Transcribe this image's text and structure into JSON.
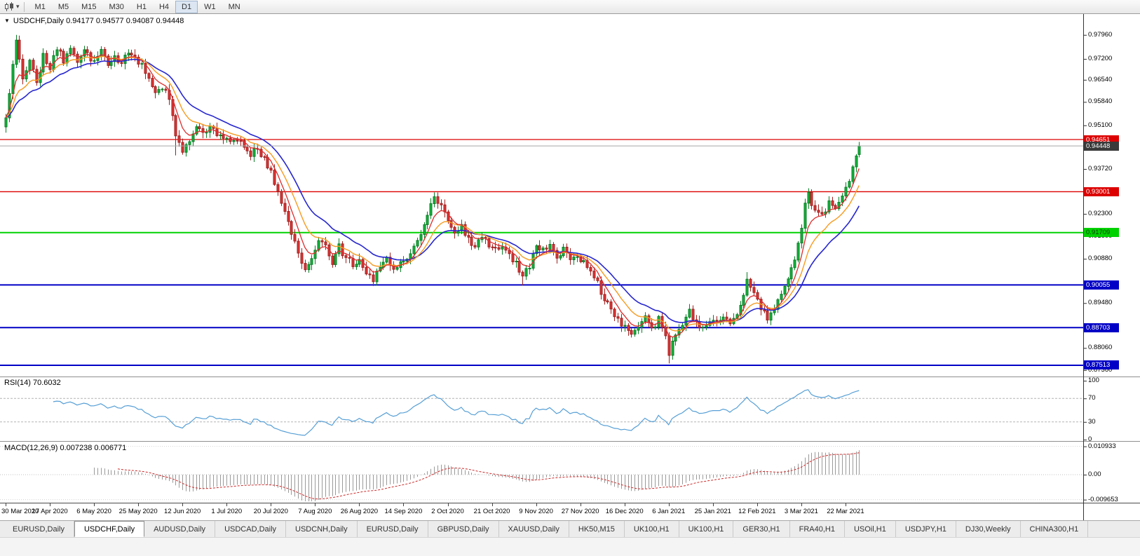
{
  "toolbar": {
    "chart_type_icon": "candlestick-chart-icon",
    "dropdown_caret": "▾",
    "timeframes": [
      "M1",
      "M5",
      "M15",
      "M30",
      "H1",
      "H4",
      "D1",
      "W1",
      "MN"
    ],
    "active_timeframe": "D1"
  },
  "chart": {
    "collapse_arrow": "▼",
    "header_text": "USDCHF,Daily  0.94177 0.94577 0.94087 0.94448",
    "y_axis_labels": [
      "0.97960",
      "0.97200",
      "0.96540",
      "0.95840",
      "0.95100",
      "0.93720",
      "0.92300",
      "0.91600",
      "0.90880",
      "0.89480",
      "0.88060",
      "0.87360"
    ],
    "x_axis_labels": [
      "30 Mar 2020",
      "17 Apr 2020",
      "6 May 2020",
      "25 May 2020",
      "12 Jun 2020",
      "1 Jul 2020",
      "20 Jul 2020",
      "7 Aug 2020",
      "26 Aug 2020",
      "14 Sep 2020",
      "2 Oct 2020",
      "21 Oct 2020",
      "9 Nov 2020",
      "27 Nov 2020",
      "16 Dec 2020",
      "6 Jan 2021",
      "25 Jan 2021",
      "12 Feb 2021",
      "3 Mar 2021",
      "22 Mar 2021"
    ],
    "hlines": [
      {
        "price": "0.94651",
        "color": "#dd0000",
        "width": 1.3,
        "badge_text": "#ffffff"
      },
      {
        "price": "0.93001",
        "color": "#dd0000",
        "width": 1.3,
        "badge_text": "#ffffff"
      },
      {
        "price": "0.91709",
        "color": "#00d200",
        "width": 2,
        "badge_text": "#0a3a0a"
      },
      {
        "price": "0.90055",
        "color": "#0000c6",
        "width": 2,
        "badge_text": "#ffffff"
      },
      {
        "price": "0.88703",
        "color": "#0000c6",
        "width": 2,
        "badge_text": "#ffffff"
      },
      {
        "price": "0.87513",
        "color": "#0000c6",
        "width": 2,
        "badge_text": "#ffffff"
      }
    ],
    "current_price": {
      "value": "0.94448"
    },
    "colors": {
      "up_candle": "#12b53a",
      "up_border": "#0b7d27",
      "down_candle": "#e23434",
      "down_border": "#9f2020",
      "price_line": "#a8a8a8",
      "price_badge_bg": "#3a3a3a",
      "rsi_line": "#569fd6",
      "macd_hist": "#9a9a9a",
      "macd_signal": "#cc2929"
    }
  },
  "rsi": {
    "title": "RSI(14) 70.6032",
    "axis_labels": [
      {
        "v": 100,
        "t": "100"
      },
      {
        "v": 70,
        "t": "70"
      },
      {
        "v": 30,
        "t": "30"
      },
      {
        "v": 0,
        "t": "0"
      }
    ],
    "dashed_levels": [
      70,
      30
    ]
  },
  "macd": {
    "title": "MACD(12,26,9) 0.007238 0.006771",
    "axis_labels": [
      {
        "v": 0.010933,
        "t": "0.010933"
      },
      {
        "v": 0,
        "t": "0.00"
      },
      {
        "v": -0.009653,
        "t": "-0.009653"
      }
    ],
    "dotted_levels": [
      0.010933,
      0,
      -0.009653
    ]
  },
  "tabs": {
    "active_index": 1,
    "items": [
      "EURUSD,Daily",
      "USDCHF,Daily",
      "AUDUSD,Daily",
      "USDCAD,Daily",
      "USDCNH,Daily",
      "EURUSD,Daily",
      "GBPUSD,Daily",
      "XAUUSD,Daily",
      "HK50,M15",
      "UK100,H1",
      "UK100,H1",
      "GER30,H1",
      "FRA40,H1",
      "USOil,H1",
      "USDJPY,H1",
      "DJ30,Weekly",
      "CHINA300,H1"
    ]
  },
  "chart_data": {
    "type": "candlestick",
    "symbol": "USDCHF",
    "timeframe": "Daily",
    "visible_ohlc": {
      "open": 0.94177,
      "high": 0.94577,
      "low": 0.94087,
      "close": 0.94448
    },
    "num_candles": 252,
    "y_axis_range": [
      0.8718,
      0.9862
    ],
    "horizontal_levels": [
      0.94651,
      0.93001,
      0.91709,
      0.90055,
      0.88703,
      0.87513
    ],
    "price_path_anchors": [
      [
        0,
        0.954
      ],
      [
        1,
        0.961
      ],
      [
        3,
        0.9775
      ],
      [
        5,
        0.9665
      ],
      [
        7,
        0.971
      ],
      [
        9,
        0.9648
      ],
      [
        11,
        0.973
      ],
      [
        13,
        0.969
      ],
      [
        15,
        0.9758
      ],
      [
        17,
        0.9718
      ],
      [
        19,
        0.9752
      ],
      [
        21,
        0.9708
      ],
      [
        23,
        0.9745
      ],
      [
        26,
        0.9712
      ],
      [
        28,
        0.9744
      ],
      [
        30,
        0.9702
      ],
      [
        32,
        0.973
      ],
      [
        34,
        0.9706
      ],
      [
        36,
        0.9738
      ],
      [
        38,
        0.9716
      ],
      [
        40,
        0.9695
      ],
      [
        42,
        0.9655
      ],
      [
        44,
        0.9615
      ],
      [
        46,
        0.9632
      ],
      [
        48,
        0.959
      ],
      [
        50,
        0.9482
      ],
      [
        52,
        0.9428
      ],
      [
        54,
        0.9468
      ],
      [
        56,
        0.9502
      ],
      [
        58,
        0.9478
      ],
      [
        60,
        0.9512
      ],
      [
        62,
        0.9488
      ],
      [
        64,
        0.9465
      ],
      [
        66,
        0.9452
      ],
      [
        68,
        0.9472
      ],
      [
        70,
        0.944
      ],
      [
        72,
        0.9415
      ],
      [
        74,
        0.9438
      ],
      [
        76,
        0.9402
      ],
      [
        78,
        0.936
      ],
      [
        80,
        0.9302
      ],
      [
        82,
        0.9242
      ],
      [
        84,
        0.9168
      ],
      [
        86,
        0.9102
      ],
      [
        88,
        0.9058
      ],
      [
        90,
        0.9098
      ],
      [
        92,
        0.9152
      ],
      [
        94,
        0.9128
      ],
      [
        96,
        0.9078
      ],
      [
        98,
        0.9125
      ],
      [
        100,
        0.9092
      ],
      [
        102,
        0.9068
      ],
      [
        104,
        0.9088
      ],
      [
        106,
        0.9048
      ],
      [
        108,
        0.9018
      ],
      [
        110,
        0.9062
      ],
      [
        112,
        0.9088
      ],
      [
        114,
        0.9058
      ],
      [
        116,
        0.9072
      ],
      [
        118,
        0.9092
      ],
      [
        120,
        0.9122
      ],
      [
        122,
        0.9168
      ],
      [
        124,
        0.9235
      ],
      [
        126,
        0.9282
      ],
      [
        128,
        0.9248
      ],
      [
        130,
        0.9205
      ],
      [
        132,
        0.9165
      ],
      [
        134,
        0.9188
      ],
      [
        136,
        0.9148
      ],
      [
        138,
        0.9128
      ],
      [
        140,
        0.9155
      ],
      [
        142,
        0.9132
      ],
      [
        144,
        0.9118
      ],
      [
        146,
        0.9135
      ],
      [
        148,
        0.9102
      ],
      [
        150,
        0.9075
      ],
      [
        152,
        0.9028
      ],
      [
        154,
        0.9068
      ],
      [
        156,
        0.9135
      ],
      [
        158,
        0.9112
      ],
      [
        160,
        0.9132
      ],
      [
        162,
        0.9098
      ],
      [
        164,
        0.9118
      ],
      [
        166,
        0.9085
      ],
      [
        168,
        0.9102
      ],
      [
        170,
        0.9072
      ],
      [
        172,
        0.9042
      ],
      [
        174,
        0.9008
      ],
      [
        176,
        0.8965
      ],
      [
        178,
        0.8928
      ],
      [
        180,
        0.8895
      ],
      [
        182,
        0.8868
      ],
      [
        184,
        0.8842
      ],
      [
        186,
        0.8878
      ],
      [
        188,
        0.8902
      ],
      [
        190,
        0.8868
      ],
      [
        192,
        0.8895
      ],
      [
        194,
        0.8845
      ],
      [
        195,
        0.8792
      ],
      [
        197,
        0.8845
      ],
      [
        199,
        0.8888
      ],
      [
        201,
        0.8918
      ],
      [
        203,
        0.8892
      ],
      [
        205,
        0.8868
      ],
      [
        207,
        0.8895
      ],
      [
        209,
        0.8885
      ],
      [
        211,
        0.8905
      ],
      [
        213,
        0.8872
      ],
      [
        215,
        0.8918
      ],
      [
        217,
        0.8978
      ],
      [
        218,
        0.9028
      ],
      [
        220,
        0.8972
      ],
      [
        222,
        0.8928
      ],
      [
        224,
        0.8905
      ],
      [
        226,
        0.8938
      ],
      [
        228,
        0.8972
      ],
      [
        230,
        0.9015
      ],
      [
        232,
        0.9095
      ],
      [
        234,
        0.9188
      ],
      [
        235,
        0.9262
      ],
      [
        236,
        0.9288
      ],
      [
        238,
        0.9242
      ],
      [
        240,
        0.9222
      ],
      [
        242,
        0.9262
      ],
      [
        244,
        0.9238
      ],
      [
        246,
        0.9282
      ],
      [
        248,
        0.9332
      ],
      [
        249,
        0.9378
      ],
      [
        250,
        0.9418
      ],
      [
        251,
        0.94448
      ]
    ],
    "candle_overrides": [
      {
        "i": 3,
        "h": 0.9796
      },
      {
        "i": 50,
        "l": 0.9415
      },
      {
        "i": 88,
        "l": 0.9046
      },
      {
        "i": 108,
        "l": 0.9002
      },
      {
        "i": 152,
        "l": 0.9004
      },
      {
        "i": 195,
        "l": 0.8757
      },
      {
        "i": 218,
        "h": 0.9046
      },
      {
        "i": 236,
        "h": 0.9311
      },
      {
        "i": 251,
        "o": 0.94177,
        "h": 0.94577,
        "l": 0.94087,
        "c": 0.94448
      }
    ],
    "indicators": {
      "moving_averages": [
        {
          "name": "slow",
          "ema_period": 21,
          "color": "#2626cf",
          "width": 1.6
        },
        {
          "name": "medium",
          "ema_period": 12,
          "color": "#f79a1f",
          "width": 1.4
        },
        {
          "name": "fast",
          "ema_period": 6,
          "color": "#dd2c2c",
          "width": 1.3
        }
      ],
      "rsi": {
        "period": 14,
        "last_value": 70.6032
      },
      "macd": {
        "fast": 12,
        "slow": 26,
        "signal": 9,
        "last_values": [
          0.007238,
          0.006771
        ],
        "scale_min": -0.009653,
        "scale_max": 0.010933
      }
    }
  }
}
